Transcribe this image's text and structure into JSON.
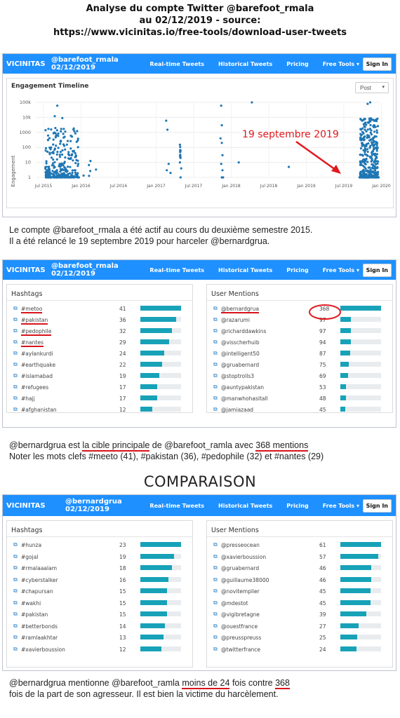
{
  "header": {
    "line1": "Analyse du compte Twitter @barefoot_rmala",
    "line2": "au 02/12/2019 - source:",
    "line3": "https://www.vicinitas.io/free-tools/download-user-tweets"
  },
  "nav": {
    "brand": "VICINITAS",
    "links": [
      "Real-time Tweets",
      "Historical Tweets",
      "Pricing",
      "Free Tools"
    ],
    "free_tools_caret": "▾",
    "sign_in": "Sign In"
  },
  "shot1": {
    "account": "@barefoot_rmala",
    "date": "02/12/2019",
    "chart_title": "Engagement Timeline",
    "select_value": "Post",
    "annotation": "19 septembre 2019"
  },
  "chart_data": {
    "type": "scatter",
    "title": "Engagement Timeline",
    "ylabel": "Engagement",
    "yscale": "log",
    "y_ticks": [
      "100k",
      "10k",
      "1000",
      "100",
      "10",
      "1"
    ],
    "x_ticks": [
      "Jul 2015",
      "Jan 2016",
      "Jul 2016",
      "Jan 2017",
      "Jul 2017",
      "Jan 2018",
      "Jul 2018",
      "Jan 2019",
      "Jul 2019",
      "Jan 2020"
    ],
    "color": "#1f77b4",
    "clusters": [
      {
        "period": "Jul 2015 - Dec 2015",
        "engagement_range": [
          1,
          100000
        ]
      },
      {
        "period": "Feb 2017 - Apr 2017",
        "engagement_range": [
          1,
          7000
        ]
      },
      {
        "period": "Nov 2017 - Dec 2017",
        "engagement_range": [
          1,
          70000
        ]
      },
      {
        "period": "Mar 2018",
        "engagement_range": [
          100000,
          100000
        ]
      },
      {
        "period": "Oct 2018",
        "engagement_range": [
          5,
          5
        ]
      },
      {
        "period": "Sep 2019 - Dec 2019",
        "engagement_range": [
          1,
          100000
        ]
      }
    ]
  },
  "caption1": {
    "line1": "Le compte @barefoot_rmala a été actif au cours du deuxième semestre 2015.",
    "line2": "Il a été relancé le 19 septembre 2019 pour harceler @bernardgrua."
  },
  "shot2": {
    "account": "@barefoot_rmala",
    "date": "02/12/2019",
    "hashtags_title": "Hashtags",
    "mentions_title": "User Mentions",
    "hashtags": [
      {
        "name": "#metoo",
        "count": 41
      },
      {
        "name": "#pakistan",
        "count": 36
      },
      {
        "name": "#pedophile",
        "count": 32
      },
      {
        "name": "#nantes",
        "count": 29
      },
      {
        "name": "#aylankurdi",
        "count": 24
      },
      {
        "name": "#earthquake",
        "count": 22
      },
      {
        "name": "#islamabad",
        "count": 19
      },
      {
        "name": "#refugees",
        "count": 17
      },
      {
        "name": "#hajj",
        "count": 17
      },
      {
        "name": "#afghanistan",
        "count": 12
      }
    ],
    "mentions": [
      {
        "name": "@bernardgrua",
        "count": 368
      },
      {
        "name": "@razarumi",
        "count": 97
      },
      {
        "name": "@richarddawkins",
        "count": 97
      },
      {
        "name": "@visscherhuib",
        "count": 94
      },
      {
        "name": "@intelligent50",
        "count": 87
      },
      {
        "name": "@gruabernard",
        "count": 75
      },
      {
        "name": "@stoptrolls3",
        "count": 69
      },
      {
        "name": "@auntypakistan",
        "count": 53
      },
      {
        "name": "@manwhohasitall",
        "count": 48
      },
      {
        "name": "@jamiazaad",
        "count": 45
      }
    ]
  },
  "caption2": {
    "a": "@bernardgrua est ",
    "b": "la cible principale",
    "c": " de @barefoot_ramla avec ",
    "d": "368 mentions",
    "line2": "Noter les mots clefs #meeto (41), #pakistan (36), #pedophile (32) et #nantes (29)"
  },
  "comparison_title": "COMPARAISON",
  "shot3": {
    "account": "@bernardgrua",
    "date": "02/12/2019",
    "hashtags_title": "Hashtags",
    "mentions_title": "User Mentions",
    "hashtags": [
      {
        "name": "#hunza",
        "count": 23
      },
      {
        "name": "#gojal",
        "count": 19
      },
      {
        "name": "#rmalaaalam",
        "count": 18
      },
      {
        "name": "#cyberstalker",
        "count": 16
      },
      {
        "name": "#chapursan",
        "count": 15
      },
      {
        "name": "#wakhi",
        "count": 15
      },
      {
        "name": "#pakistan",
        "count": 15
      },
      {
        "name": "#betterbonds",
        "count": 14
      },
      {
        "name": "#ramlaakhtar",
        "count": 13
      },
      {
        "name": "#xavierboussion",
        "count": 12
      }
    ],
    "mentions": [
      {
        "name": "@presseocean",
        "count": 61
      },
      {
        "name": "@xavierboussion",
        "count": 57
      },
      {
        "name": "@gruabernard",
        "count": 46
      },
      {
        "name": "@guillaume38000",
        "count": 46
      },
      {
        "name": "@novitemplier",
        "count": 45
      },
      {
        "name": "@mdestot",
        "count": 45
      },
      {
        "name": "@vigibretagne",
        "count": 39
      },
      {
        "name": "@ouestfrance",
        "count": 27
      },
      {
        "name": "@preusspreuss",
        "count": 25
      },
      {
        "name": "@twitterfrance",
        "count": 24
      }
    ]
  },
  "caption3": {
    "a": "@bernardgrua mentionne @barefoot_ramla ",
    "b": "moins de 24",
    "c": " fois contre ",
    "d": "368",
    "line2": "fois de la part de son agresseur. Il est bien la victime du harcèlement."
  },
  "icons": {
    "external_link": "⧉"
  },
  "colors": {
    "nav": "#1e90ff",
    "bar": "#17a2b8",
    "annotation": "#e0191f",
    "point": "#1f77b4"
  }
}
